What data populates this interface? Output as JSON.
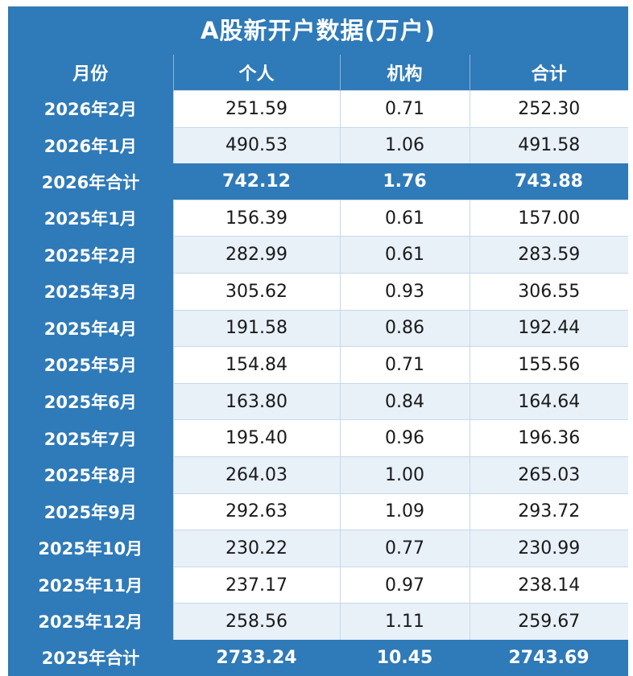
{
  "title": "A股新开户数据(万户)",
  "columns": [
    "月份",
    "个人",
    "机构",
    "合计"
  ],
  "rows": [
    {
      "month": "2026年2月",
      "individual": "251.59",
      "institution": "0.71",
      "total": "252.30",
      "is_total": false
    },
    {
      "month": "2026年1月",
      "individual": "490.53",
      "institution": "1.06",
      "total": "491.58",
      "is_total": false
    },
    {
      "month": "2026年合计",
      "individual": "742.12",
      "institution": "1.76",
      "total": "743.88",
      "is_total": true
    },
    {
      "month": "2025年1月",
      "individual": "156.39",
      "institution": "0.61",
      "total": "157.00",
      "is_total": false
    },
    {
      "month": "2025年2月",
      "individual": "282.99",
      "institution": "0.61",
      "total": "283.59",
      "is_total": false
    },
    {
      "month": "2025年3月",
      "individual": "305.62",
      "institution": "0.93",
      "total": "306.55",
      "is_total": false
    },
    {
      "month": "2025年4月",
      "individual": "191.58",
      "institution": "0.86",
      "total": "192.44",
      "is_total": false
    },
    {
      "month": "2025年5月",
      "individual": "154.84",
      "institution": "0.71",
      "total": "155.56",
      "is_total": false
    },
    {
      "month": "2025年6月",
      "individual": "163.80",
      "institution": "0.84",
      "total": "164.64",
      "is_total": false
    },
    {
      "month": "2025年7月",
      "individual": "195.40",
      "institution": "0.96",
      "total": "196.36",
      "is_total": false
    },
    {
      "month": "2025年8月",
      "individual": "264.03",
      "institution": "1.00",
      "total": "265.03",
      "is_total": false
    },
    {
      "month": "2025年9月",
      "individual": "292.63",
      "institution": "1.09",
      "total": "293.72",
      "is_total": false
    },
    {
      "month": "2025年10月",
      "individual": "230.22",
      "institution": "0.77",
      "total": "230.99",
      "is_total": false
    },
    {
      "month": "2025年11月",
      "individual": "237.17",
      "institution": "0.97",
      "total": "238.14",
      "is_total": false
    },
    {
      "month": "2025年12月",
      "individual": "258.56",
      "institution": "1.11",
      "total": "259.67",
      "is_total": false
    },
    {
      "month": "2025年合计",
      "individual": "2733.24",
      "institution": "10.45",
      "total": "2743.69",
      "is_total": true
    }
  ],
  "colors": {
    "header_blue": "#2f7ab8",
    "row_alt": "#e8f0f8",
    "row_white": "#ffffff",
    "text_dark": "#1a1a1a"
  }
}
